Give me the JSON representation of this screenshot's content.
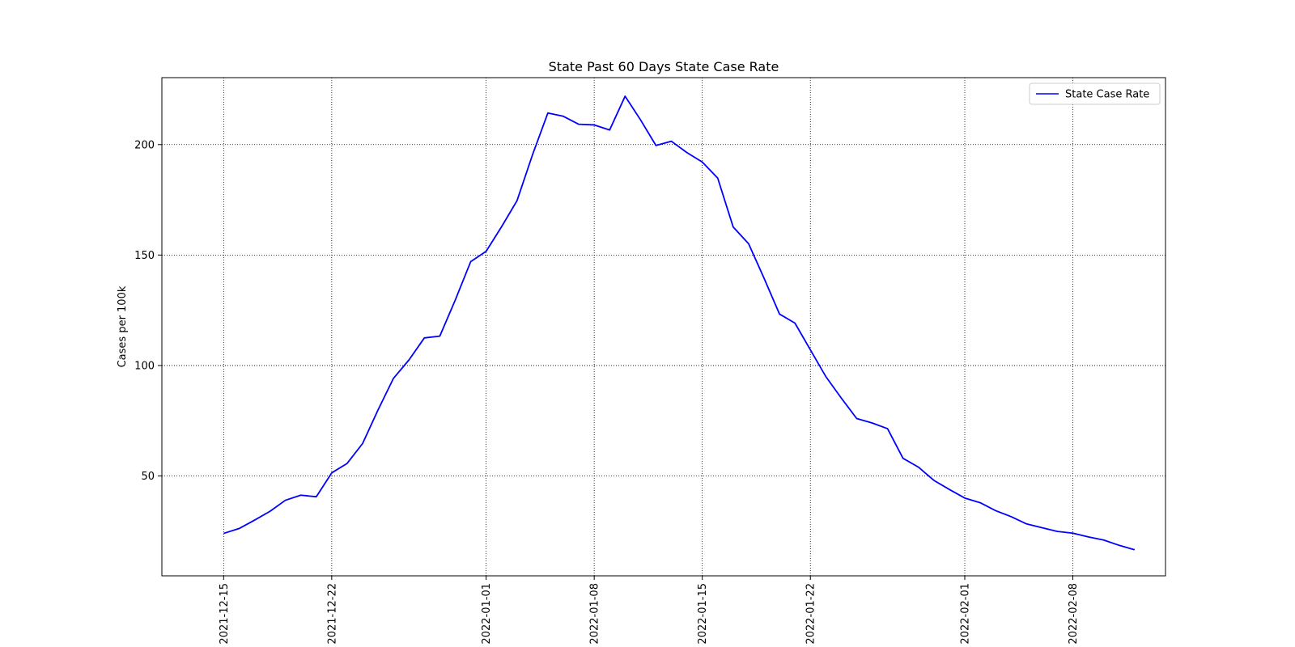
{
  "chart_data": {
    "type": "line",
    "title": "State Past  60 Days State Case Rate",
    "xlabel": "",
    "ylabel": "Cases per 100k",
    "xlim": [
      "2021-12-11",
      "2022-02-14"
    ],
    "ylim": [
      4.8,
      230.3
    ],
    "grid": true,
    "legend_position": "top-right",
    "x_ticks": [
      "2021-12-15",
      "2021-12-22",
      "2022-01-01",
      "2022-01-08",
      "2022-01-15",
      "2022-01-22",
      "2022-02-01",
      "2022-02-08"
    ],
    "y_ticks": [
      50,
      100,
      150,
      200
    ],
    "colors": {
      "series": "#0000ff",
      "grid": "#000000"
    },
    "series": [
      {
        "name": "State Case Rate",
        "x": [
          "2021-12-15",
          "2021-12-16",
          "2021-12-17",
          "2021-12-18",
          "2021-12-19",
          "2021-12-20",
          "2021-12-21",
          "2021-12-22",
          "2021-12-23",
          "2021-12-24",
          "2021-12-25",
          "2021-12-26",
          "2021-12-27",
          "2021-12-28",
          "2021-12-29",
          "2021-12-30",
          "2021-12-31",
          "2022-01-01",
          "2022-01-02",
          "2022-01-03",
          "2022-01-04",
          "2022-01-05",
          "2022-01-06",
          "2022-01-07",
          "2022-01-08",
          "2022-01-09",
          "2022-01-10",
          "2022-01-11",
          "2022-01-12",
          "2022-01-13",
          "2022-01-14",
          "2022-01-15",
          "2022-01-16",
          "2022-01-17",
          "2022-01-18",
          "2022-01-19",
          "2022-01-20",
          "2022-01-21",
          "2022-01-22",
          "2022-01-23",
          "2022-01-24",
          "2022-01-25",
          "2022-01-26",
          "2022-01-27",
          "2022-01-28",
          "2022-01-29",
          "2022-01-30",
          "2022-01-31",
          "2022-02-01",
          "2022-02-02",
          "2022-02-03",
          "2022-02-04",
          "2022-02-05",
          "2022-02-06",
          "2022-02-07",
          "2022-02-08",
          "2022-02-09",
          "2022-02-10",
          "2022-02-11",
          "2022-02-12"
        ],
        "values": [
          24,
          26.2,
          30,
          34,
          39,
          41.3,
          40.6,
          51.4,
          55.7,
          64.7,
          79.9,
          94.2,
          102.5,
          112.5,
          113.3,
          129.6,
          147,
          151.7,
          162.8,
          174.6,
          195.3,
          214.3,
          212.8,
          209.2,
          208.9,
          206.6,
          221.9,
          211.2,
          199.6,
          201.5,
          196.4,
          192.1,
          184.8,
          162.7,
          155.1,
          139.5,
          123.3,
          119.2,
          107.1,
          95,
          85.3,
          76,
          74,
          71.4,
          58,
          54,
          48,
          43.9,
          40,
          37.9,
          34.3,
          31.6,
          28.3,
          26.6,
          24.9,
          24.1,
          22.4,
          21,
          18.6,
          16.6
        ]
      }
    ]
  }
}
